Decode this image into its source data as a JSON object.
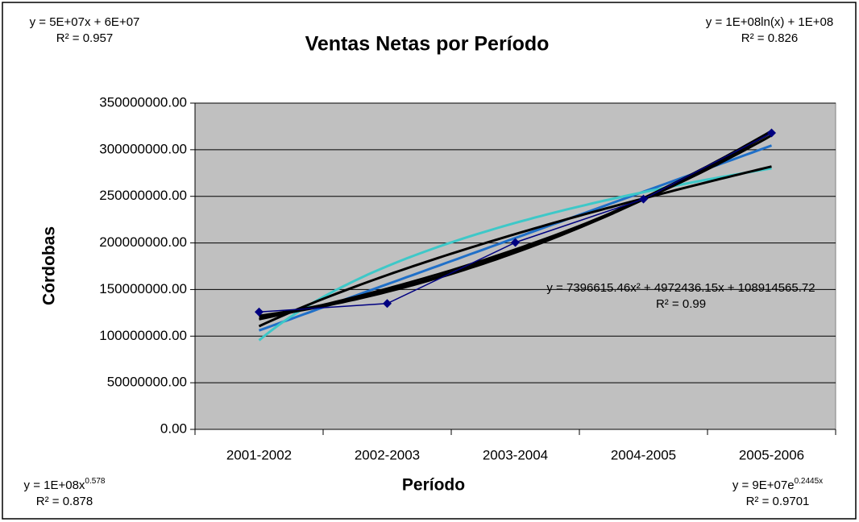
{
  "chart_data": {
    "type": "line",
    "title": "Ventas Netas por Período",
    "x_label": "Período",
    "y_label": "Córdobas",
    "categories": [
      "2001-2002",
      "2002-2003",
      "2003-2004",
      "2004-2005",
      "2005-2006"
    ],
    "series": [
      {
        "name": "Ventas Netas",
        "color": "#000080",
        "values": [
          126000000,
          135000000,
          200500000,
          247000000,
          318000000
        ]
      }
    ],
    "ylim": [
      0,
      350000000
    ],
    "yticks": [
      {
        "value": 0,
        "label": "0.00"
      },
      {
        "value": 50000000,
        "label": "50000000.00"
      },
      {
        "value": 100000000,
        "label": "100000000.00"
      },
      {
        "value": 150000000,
        "label": "150000000.00"
      },
      {
        "value": 200000000,
        "label": "200000000.00"
      },
      {
        "value": 250000000,
        "label": "250000000.00"
      },
      {
        "value": 300000000,
        "label": "300000000.00"
      },
      {
        "value": 350000000,
        "label": "350000000.00"
      }
    ],
    "grid": true,
    "trendlines": [
      {
        "kind": "linear",
        "color": "#1f6fc8",
        "equation": "y = 5E+07x + 6E+07",
        "r2": "R² = 0.957"
      },
      {
        "kind": "log",
        "color": "#3ec8c8",
        "equation": "y = 1E+08ln(x) + 1E+08",
        "r2": "R² = 0.826"
      },
      {
        "kind": "poly2",
        "color": "#000000",
        "equation": "y = 7396615.46x² + 4972436.15x + 108914565.72",
        "r2": "R² = 0.99"
      },
      {
        "kind": "power",
        "color": "#000000",
        "equation": "y = 1E+08x",
        "sup": "0.578",
        "r2": "R² = 0.878"
      },
      {
        "kind": "exp",
        "color": "#000000",
        "equation": "y = 9E+07e",
        "sup": "0.2445x",
        "r2": "R² = 0.9701"
      }
    ]
  }
}
